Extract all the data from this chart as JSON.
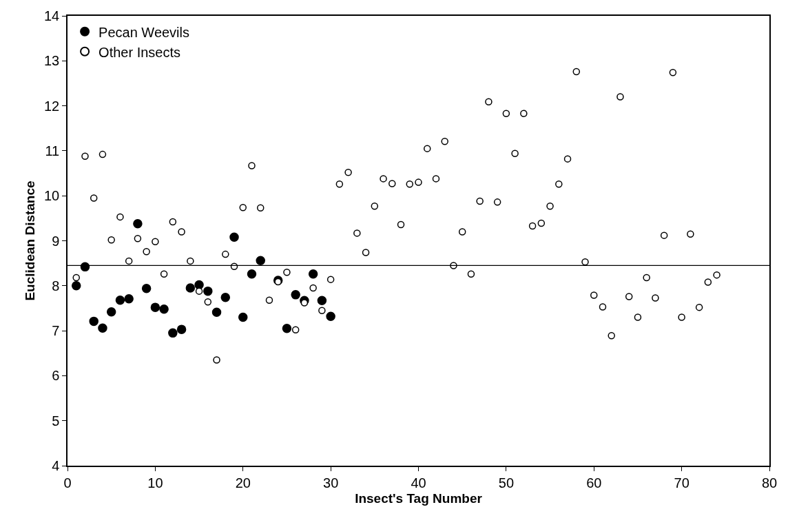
{
  "chart_data": {
    "type": "scatter",
    "xlabel": "Insect's Tag Number",
    "ylabel": "Euclidean Distance",
    "series": [
      {
        "name": "Pecan Weevils",
        "color": "#000000",
        "x": [
          1,
          2,
          3,
          4,
          5,
          6,
          7,
          8,
          9,
          10,
          11,
          12,
          13,
          14,
          15,
          16,
          17,
          18,
          19,
          20,
          21,
          22,
          24,
          25,
          26,
          27,
          28,
          29,
          30
        ],
        "values": [
          8.0,
          8.42,
          7.21,
          7.06,
          7.42,
          7.68,
          7.71,
          9.38,
          7.94,
          7.52,
          7.48,
          6.95,
          7.03,
          7.95,
          8.02,
          7.88,
          7.41,
          7.74,
          9.08,
          7.3,
          8.26,
          8.56,
          8.12,
          7.05,
          7.8,
          7.67,
          8.26,
          7.67,
          7.32
        ]
      },
      {
        "name": "Other Insects",
        "color": "#ffffff",
        "x": [
          1,
          2,
          3,
          4,
          5,
          6,
          7,
          8,
          9,
          10,
          11,
          12,
          13,
          14,
          15,
          16,
          17,
          18,
          19,
          20,
          21,
          22,
          23,
          24,
          25,
          26,
          27,
          28,
          29,
          30,
          31,
          32,
          33,
          34,
          35,
          36,
          37,
          38,
          39,
          40,
          41,
          42,
          43,
          44,
          45,
          46,
          47,
          48,
          49,
          50,
          51,
          52,
          53,
          54,
          55,
          56,
          57,
          58,
          59,
          60,
          61,
          62,
          63,
          64,
          65,
          66,
          67,
          68,
          69,
          70,
          71,
          72,
          73,
          74
        ],
        "values": [
          8.18,
          10.88,
          9.95,
          10.92,
          9.02,
          9.53,
          8.55,
          9.05,
          8.76,
          8.98,
          8.26,
          9.42,
          9.2,
          8.55,
          7.88,
          7.64,
          6.35,
          8.7,
          8.43,
          9.74,
          10.67,
          9.73,
          7.68,
          8.09,
          8.3,
          7.02,
          7.62,
          7.95,
          7.45,
          8.14,
          10.26,
          10.52,
          9.17,
          8.74,
          9.77,
          10.38,
          10.27,
          9.36,
          10.26,
          10.3,
          11.05,
          10.38,
          11.21,
          8.45,
          9.2,
          8.26,
          9.88,
          12.09,
          9.86,
          11.83,
          10.94,
          11.83,
          9.33,
          9.39,
          9.77,
          10.26,
          10.82,
          12.76,
          8.53,
          7.79,
          7.53,
          6.89,
          12.2,
          7.76,
          7.3,
          8.18,
          7.73,
          9.12,
          12.74,
          7.3,
          9.15,
          7.52,
          8.08,
          8.24
        ]
      }
    ],
    "ref_lines": [
      {
        "axis": "y",
        "value": 8.45,
        "color": "#000000"
      }
    ],
    "xlim": [
      0,
      80
    ],
    "xticks": [
      0,
      10,
      20,
      30,
      40,
      50,
      60,
      70,
      80
    ],
    "ylim": [
      4,
      14
    ],
    "yticks": [
      4,
      5,
      6,
      7,
      8,
      9,
      10,
      11,
      12,
      13,
      14
    ],
    "legend": "top left",
    "marker": "circle"
  }
}
